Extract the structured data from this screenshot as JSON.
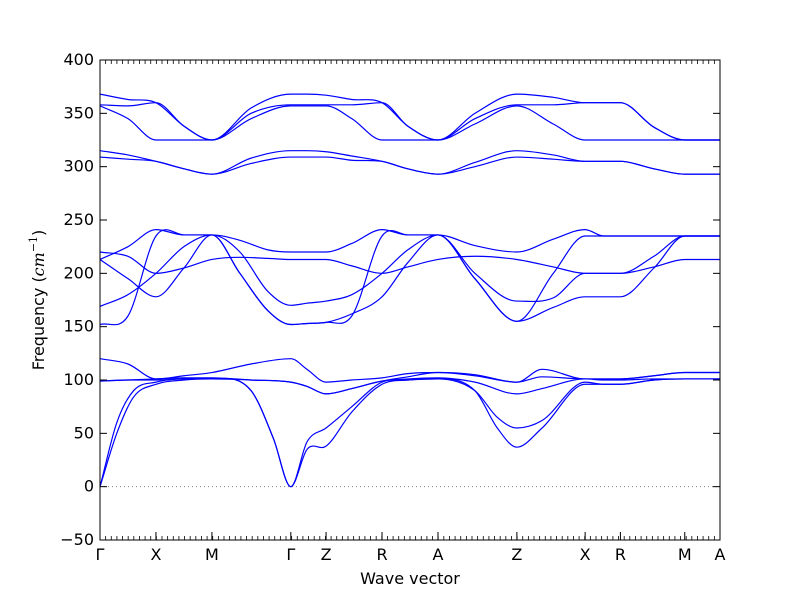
{
  "chart_data": {
    "type": "line",
    "title": "",
    "xlabel": "Wave vector",
    "ylabel": "Frequency",
    "ylabel_unit": "cm",
    "ylabel_unit_power": "−1",
    "ylim": [
      -50,
      400
    ],
    "yticks": [
      -50,
      0,
      50,
      100,
      150,
      200,
      250,
      300,
      350,
      400
    ],
    "zero_line": {
      "y": 0,
      "style": "dotted",
      "color": "#808080"
    },
    "line_color": "#0000ff",
    "path_points": [
      {
        "label": "Γ",
        "x": 0
      },
      {
        "label": "X",
        "x": 1
      },
      {
        "label": "M",
        "x": 2
      },
      {
        "label": "Γ",
        "x": 3.41
      },
      {
        "label": "Z",
        "x": 4.04
      },
      {
        "label": "R",
        "x": 5.04
      },
      {
        "label": "A",
        "x": 6.04
      },
      {
        "label": "Z",
        "x": 7.45
      },
      {
        "label": "X",
        "x": 8.67
      },
      {
        "label": "R",
        "x": 9.3
      },
      {
        "label": "M",
        "x": 10.45
      },
      {
        "label": "A",
        "x": 11.08
      }
    ],
    "series": [
      {
        "x": [
          0,
          0.5,
          1,
          1.5,
          2,
          2.7,
          3.41,
          3.7,
          4.04,
          4.5,
          5.04,
          5.5,
          6.04,
          6.7,
          7.45,
          8.1,
          8.67,
          9.0,
          9.3,
          9.9,
          10.45,
          10.8,
          11.08
        ],
        "values": [
          368,
          363,
          360,
          338,
          325,
          355,
          368,
          368,
          367,
          363,
          360,
          338,
          325,
          350,
          368,
          365,
          360,
          360,
          360,
          337,
          325,
          325,
          325
        ]
      },
      {
        "x": [
          0,
          0.5,
          1,
          1.5,
          2,
          2.7,
          3.41,
          3.7,
          4.04,
          4.5,
          5.04,
          5.5,
          6.04,
          6.7,
          7.45,
          8.1,
          8.67,
          9.0,
          9.3,
          9.9,
          10.45,
          10.8,
          11.08
        ],
        "values": [
          358,
          357,
          360,
          338,
          325,
          350,
          358,
          358,
          358,
          358,
          360,
          338,
          325,
          345,
          358,
          358,
          360,
          360,
          360,
          337,
          325,
          325,
          325
        ]
      },
      {
        "x": [
          0,
          0.5,
          1,
          1.5,
          2,
          2.7,
          3.41,
          3.7,
          4.04,
          4.5,
          5.04,
          5.5,
          6.04,
          6.7,
          7.45,
          8.1,
          8.67,
          9.0,
          9.3,
          9.9,
          10.45,
          10.8,
          11.08
        ],
        "values": [
          357,
          345,
          325,
          325,
          325,
          345,
          357,
          357,
          357,
          345,
          325,
          325,
          325,
          340,
          357,
          340,
          325,
          325,
          325,
          325,
          325,
          325,
          325
        ]
      },
      {
        "x": [
          0,
          0.5,
          1,
          1.5,
          2,
          2.7,
          3.41,
          3.7,
          4.04,
          4.5,
          5.04,
          5.5,
          6.04,
          6.7,
          7.45,
          8.1,
          8.67,
          9.0,
          9.3,
          9.9,
          10.45,
          10.8,
          11.08
        ],
        "values": [
          315,
          311,
          305,
          298,
          293,
          308,
          315,
          315,
          314,
          310,
          305,
          298,
          293,
          304,
          315,
          311,
          305,
          305,
          305,
          298,
          293,
          293,
          293
        ]
      },
      {
        "x": [
          0,
          0.5,
          1,
          1.5,
          2,
          2.7,
          3.41,
          3.7,
          4.04,
          4.5,
          5.04,
          5.5,
          6.04,
          6.7,
          7.45,
          8.1,
          8.67,
          9.0,
          9.3,
          9.9,
          10.45,
          10.8,
          11.08
        ],
        "values": [
          309,
          307,
          305,
          298,
          293,
          303,
          309,
          309,
          309,
          306,
          305,
          298,
          293,
          300,
          309,
          307,
          305,
          305,
          305,
          298,
          293,
          293,
          293
        ]
      },
      {
        "x": [
          0,
          0.5,
          1,
          1.5,
          2,
          2.5,
          3.0,
          3.41,
          3.7,
          4.04,
          4.5,
          5.04,
          5.5,
          6.04,
          6.7,
          7.45,
          8.1,
          8.67,
          9.0,
          9.3,
          9.9,
          10.45,
          10.8,
          11.08
        ],
        "values": [
          213,
          225,
          241,
          236,
          236,
          231,
          222,
          220,
          220,
          220,
          228,
          241,
          236,
          236,
          226,
          220,
          232,
          241,
          235,
          235,
          235,
          235,
          235,
          235
        ]
      },
      {
        "x": [
          0,
          0.5,
          1,
          1.5,
          2,
          2.5,
          3.0,
          3.41,
          3.7,
          4.04,
          4.5,
          5.04,
          5.5,
          6.04,
          6.7,
          7.45,
          8.1,
          8.67,
          9.0,
          9.3,
          9.9,
          10.45,
          10.8,
          11.08
        ],
        "values": [
          220,
          216,
          200,
          205,
          213,
          215,
          214,
          213,
          213,
          213,
          207,
          200,
          206,
          213,
          216,
          213,
          206,
          200,
          200,
          200,
          206,
          213,
          213,
          213
        ]
      },
      {
        "x": [
          0,
          0.5,
          1,
          1.5,
          2,
          2.5,
          3.0,
          3.41,
          3.7,
          4.04,
          4.5,
          5.04,
          5.5,
          6.04,
          6.7,
          7.45,
          8.1,
          8.67,
          9.0,
          9.3,
          9.9,
          10.45,
          10.8,
          11.08
        ],
        "values": [
          213,
          195,
          178,
          205,
          236,
          220,
          183,
          170,
          172,
          174,
          180,
          200,
          222,
          236,
          200,
          174,
          177,
          200,
          200,
          200,
          216,
          235,
          235,
          235
        ]
      },
      {
        "x": [
          0,
          0.5,
          1,
          1.5,
          2,
          2.5,
          3.0,
          3.41,
          3.7,
          4.04,
          4.5,
          5.04,
          5.5,
          6.04,
          6.7,
          7.45,
          8.1,
          8.67,
          9.0,
          9.3,
          9.9,
          10.45,
          10.8,
          11.08
        ],
        "values": [
          169,
          180,
          200,
          225,
          236,
          200,
          165,
          152,
          153,
          154,
          162,
          178,
          210,
          236,
          195,
          155,
          168,
          178,
          178,
          178,
          205,
          235,
          235,
          235
        ]
      },
      {
        "x": [
          0,
          0.5,
          1,
          1.5,
          2,
          2.5,
          3.0,
          3.41,
          3.7,
          4.04,
          4.5,
          5.04,
          5.5,
          6.04,
          6.7,
          7.45,
          8.1,
          8.67,
          9.0,
          9.3,
          9.9,
          10.45,
          10.8,
          11.08
        ],
        "values": [
          152,
          160,
          235,
          236,
          236,
          200,
          165,
          152,
          153,
          154,
          160,
          235,
          236,
          236,
          195,
          155,
          200,
          235,
          235,
          235,
          235,
          235,
          235,
          235
        ]
      },
      {
        "x": [
          0,
          0.5,
          1,
          1.5,
          2,
          2.7,
          3.41,
          3.7,
          4.04,
          4.5,
          5.04,
          5.5,
          6.04,
          6.7,
          7.45,
          7.9,
          8.67,
          9.0,
          9.3,
          9.9,
          10.45,
          10.8,
          11.08
        ],
        "values": [
          120,
          115,
          101,
          104,
          107,
          115,
          120,
          110,
          98,
          100,
          102,
          106,
          107,
          105,
          98,
          110,
          101,
          101,
          101,
          104,
          107,
          107,
          107
        ]
      },
      {
        "x": [
          0,
          0.5,
          1,
          1.5,
          2,
          2.7,
          3.41,
          3.7,
          4.04,
          4.5,
          5.04,
          5.5,
          6.04,
          6.7,
          7.45,
          7.9,
          8.67,
          9.0,
          9.3,
          9.9,
          10.45,
          10.8,
          11.08
        ],
        "values": [
          99,
          100,
          101,
          102,
          102,
          100,
          98,
          94,
          87,
          92,
          99,
          103,
          107,
          104,
          98,
          103,
          101,
          101,
          101,
          104,
          107,
          107,
          107
        ]
      },
      {
        "x": [
          0,
          0.5,
          1,
          1.5,
          2,
          2.7,
          3.41,
          3.7,
          4.04,
          4.5,
          5.04,
          5.5,
          6.04,
          6.7,
          7.45,
          7.9,
          8.67,
          9.0,
          9.3,
          9.9,
          10.45,
          10.8,
          11.08
        ],
        "values": [
          99,
          100,
          100,
          101,
          101,
          100,
          98,
          94,
          87,
          92,
          99,
          101,
          102,
          98,
          87,
          92,
          101,
          100,
          100,
          101,
          101,
          101,
          101
        ]
      },
      {
        "x": [
          0,
          0.3,
          0.6,
          1,
          1.5,
          2,
          2.7,
          3.1,
          3.41,
          3.7,
          4.04,
          4.5,
          5.04,
          5.5,
          6.04,
          6.7,
          7.1,
          7.45,
          7.9,
          8.67,
          9.0,
          9.3,
          9.9,
          10.45,
          10.8,
          11.08
        ],
        "values": [
          0,
          60,
          90,
          98,
          101,
          101,
          90,
          45,
          0,
          42,
          55,
          75,
          98,
          100,
          101,
          90,
          65,
          55,
          62,
          98,
          96,
          96,
          100,
          101,
          101,
          101
        ]
      },
      {
        "x": [
          0,
          0.3,
          0.6,
          1,
          1.5,
          2,
          2.7,
          3.1,
          3.41,
          3.7,
          4.04,
          4.5,
          5.04,
          5.5,
          6.04,
          6.7,
          7.1,
          7.45,
          7.9,
          8.67,
          9.0,
          9.3,
          9.9,
          10.45,
          10.8,
          11.08
        ],
        "values": [
          0,
          50,
          84,
          96,
          100,
          101,
          90,
          45,
          0,
          35,
          38,
          70,
          96,
          100,
          101,
          90,
          55,
          37,
          55,
          96,
          96,
          96,
          100,
          101,
          101,
          101
        ]
      }
    ]
  }
}
